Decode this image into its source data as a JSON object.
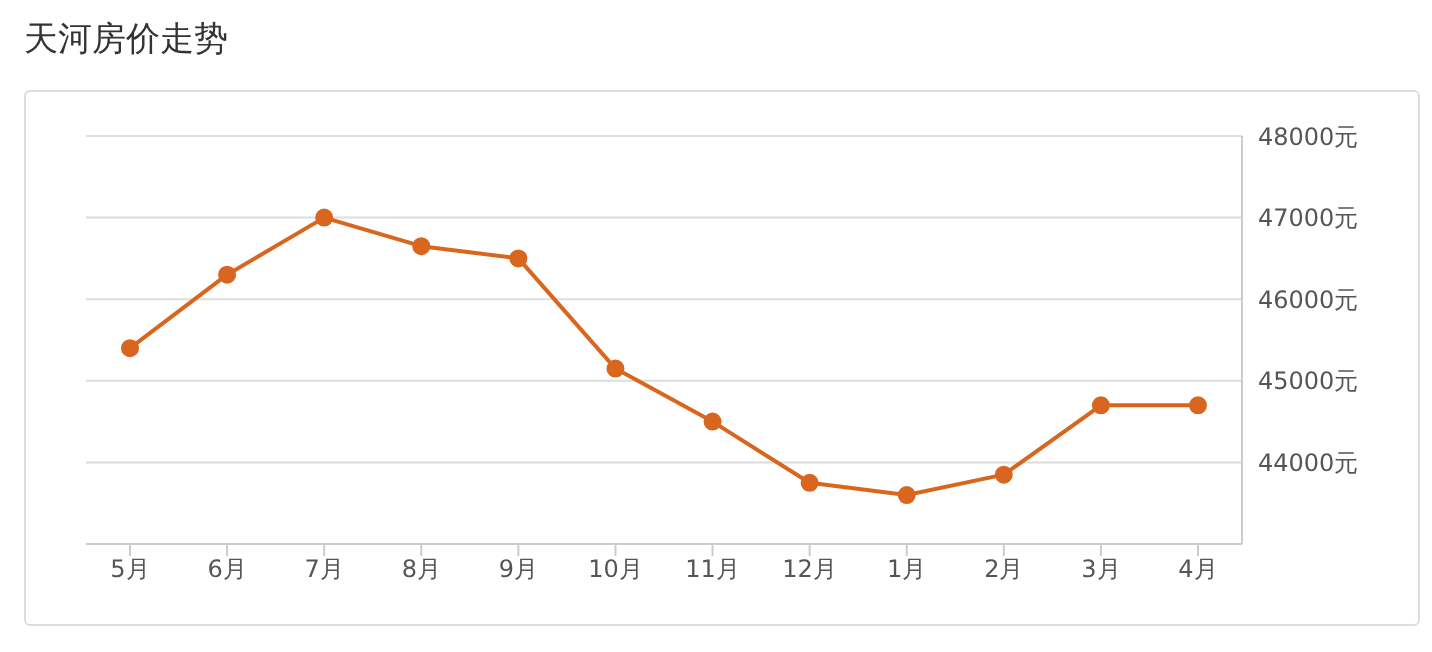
{
  "chart_data": {
    "type": "line",
    "title": "天河房价走势",
    "categories": [
      "5月",
      "6月",
      "7月",
      "8月",
      "9月",
      "10月",
      "11月",
      "12月",
      "1月",
      "2月",
      "3月",
      "4月"
    ],
    "series": [
      {
        "color": "#d9661f",
        "values": [
          45400,
          46300,
          47000,
          46650,
          46500,
          45150,
          44500,
          43750,
          43600,
          43850,
          44700,
          44700
        ]
      }
    ],
    "ylim": [
      43000,
      48000
    ],
    "yticks": [
      {
        "value": 43000,
        "label": null
      },
      {
        "value": 44000,
        "label": "44000元"
      },
      {
        "value": 45000,
        "label": "45000元"
      },
      {
        "value": 46000,
        "label": "46000元"
      },
      {
        "value": 47000,
        "label": "47000元"
      },
      {
        "value": 48000,
        "label": "48000元"
      }
    ],
    "grid": "y",
    "marker": "circle",
    "legend": false
  }
}
